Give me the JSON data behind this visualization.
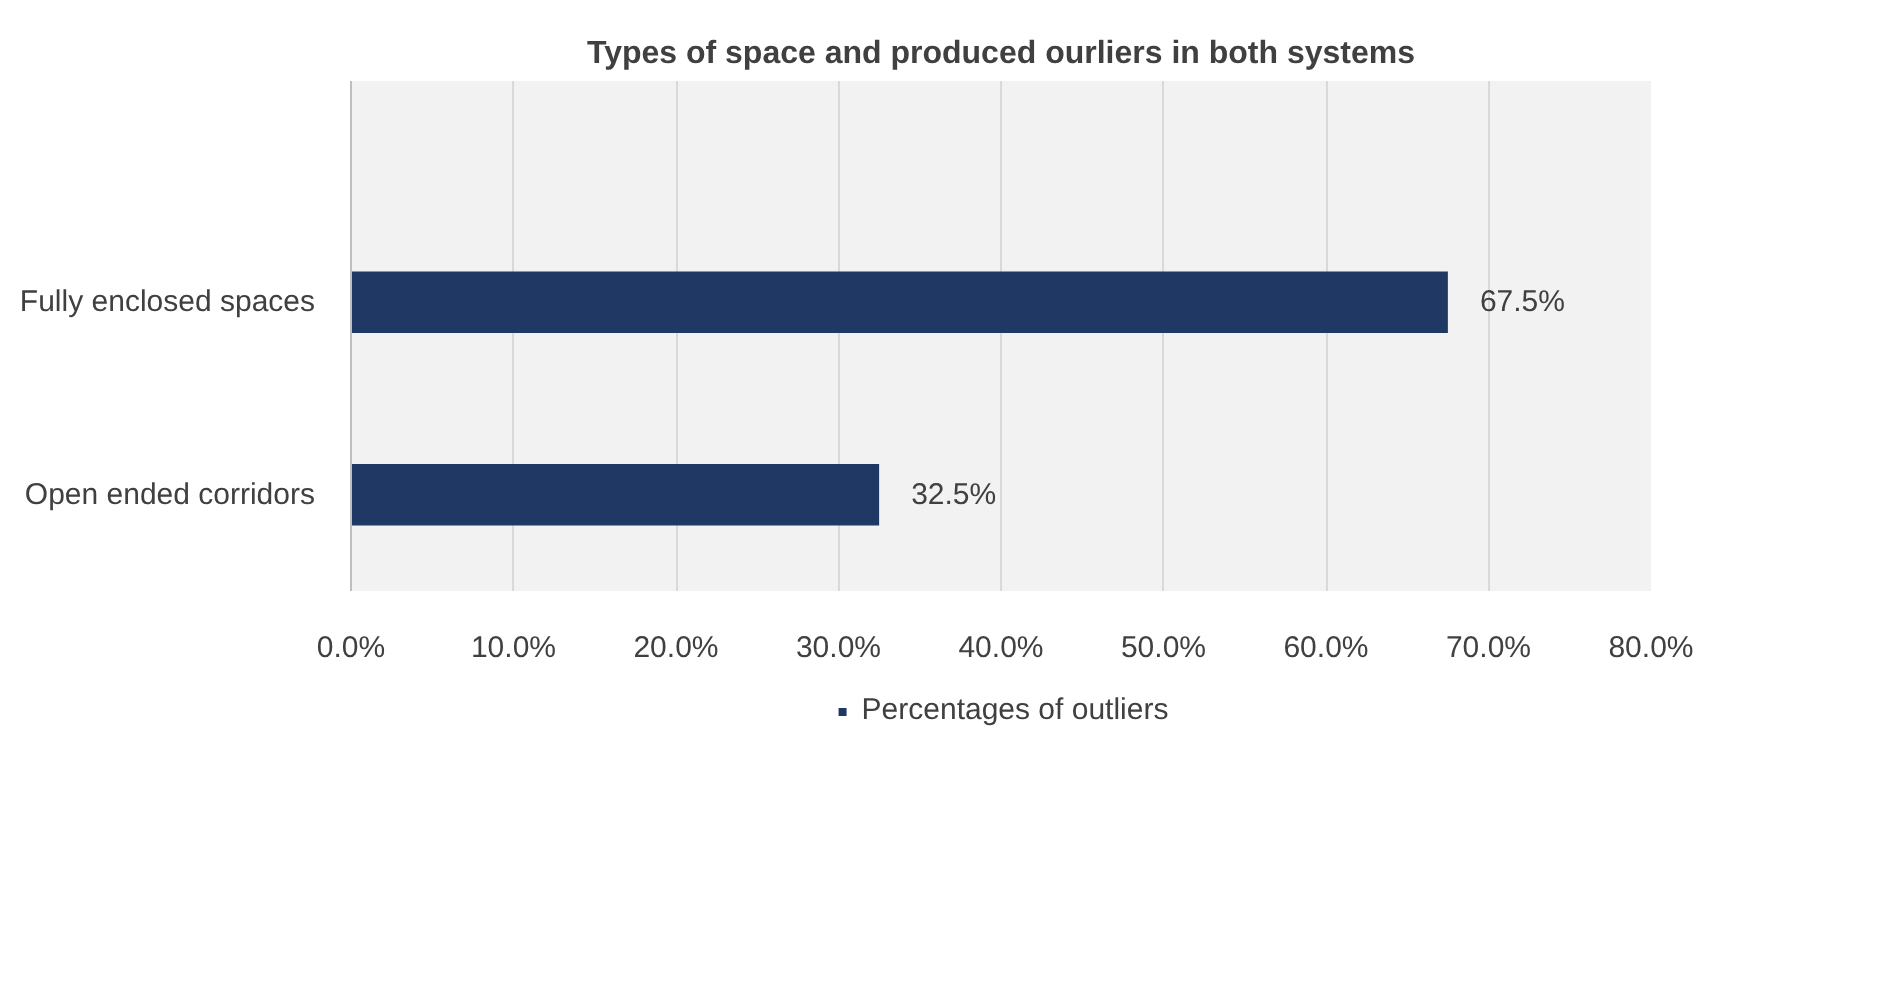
{
  "chart_data": {
    "type": "bar",
    "orientation": "horizontal",
    "title": "Types of space and produced ourliers in both systems",
    "categories": [
      "Fully enclosed spaces",
      "Open ended corridors"
    ],
    "series": [
      {
        "name": "Percentages of outliers",
        "color": "#203864",
        "values": [
          67.5,
          32.5
        ]
      }
    ],
    "value_labels": [
      "67.5%",
      "32.5%"
    ],
    "xlim": [
      0,
      80
    ],
    "xticks": [
      {
        "value": 0,
        "label": "0.0%"
      },
      {
        "value": 10,
        "label": "10.0%"
      },
      {
        "value": 20,
        "label": "20.0%"
      },
      {
        "value": 30,
        "label": "30.0%"
      },
      {
        "value": 40,
        "label": "40.0%"
      },
      {
        "value": 50,
        "label": "50.0%"
      },
      {
        "value": 60,
        "label": "60.0%"
      },
      {
        "value": 70,
        "label": "70.0%"
      },
      {
        "value": 80,
        "label": "80.0%"
      }
    ],
    "grid": "x",
    "legend": "bottom"
  }
}
